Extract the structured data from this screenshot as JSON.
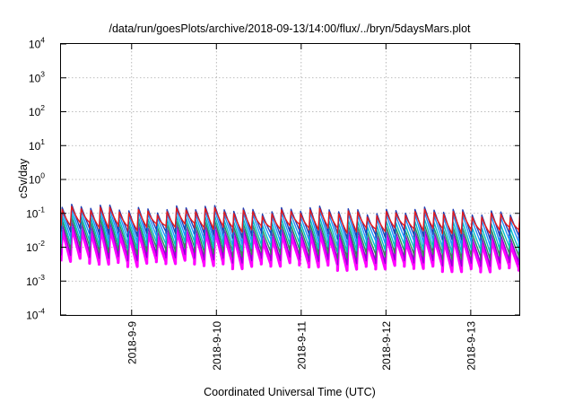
{
  "chart_data": {
    "type": "line",
    "title": "/data/run/goesPlots/archive/2018-09-13/14:00/flux/../bryn/5daysMars.plot",
    "xlabel": "Coordinated Universal Time (UTC)",
    "ylabel": "cSv/day",
    "yscale": "log",
    "ylim": [
      0.0001,
      10000
    ],
    "y_ticks": [
      {
        "value": 0.0001,
        "base": "10",
        "exp": "-4"
      },
      {
        "value": 0.001,
        "base": "10",
        "exp": "-3"
      },
      {
        "value": 0.01,
        "base": "10",
        "exp": "-2"
      },
      {
        "value": 0.1,
        "base": "10",
        "exp": "-1"
      },
      {
        "value": 1,
        "base": "10",
        "exp": "0"
      },
      {
        "value": 10,
        "base": "10",
        "exp": "1"
      },
      {
        "value": 100,
        "base": "10",
        "exp": "2"
      },
      {
        "value": 1000,
        "base": "10",
        "exp": "3"
      },
      {
        "value": 10000,
        "base": "10",
        "exp": "4"
      }
    ],
    "xlim": [
      "2018-09-08T04:00",
      "2018-09-13T14:00"
    ],
    "x_ticks": [
      "2018-9-9",
      "2018-9-10",
      "2018-9-11",
      "2018-9-12",
      "2018-9-13"
    ],
    "x_tick_dates": [
      "2018-09-09T00:00",
      "2018-09-10T00:00",
      "2018-09-11T00:00",
      "2018-09-12T00:00",
      "2018-09-13T00:00"
    ],
    "grid": true,
    "sawtooth_period_hours": 2.7,
    "series": [
      {
        "color": "#ff00ff",
        "peak": [
          0.03,
          0.015
        ],
        "trough": [
          0.004,
          0.0022
        ]
      },
      {
        "color": "#9400d3",
        "peak": [
          0.045,
          0.022
        ],
        "trough": [
          0.006,
          0.0032
        ]
      },
      {
        "color": "#2e8b57",
        "peak": [
          0.06,
          0.03
        ],
        "trough": [
          0.009,
          0.005
        ]
      },
      {
        "color": "#00c0c0",
        "peak": [
          0.08,
          0.045
        ],
        "trough": [
          0.013,
          0.008
        ]
      },
      {
        "color": "#1e90ff",
        "peak": [
          0.11,
          0.075
        ],
        "trough": [
          0.02,
          0.013
        ]
      },
      {
        "color": "#1f3fb5",
        "peak": [
          0.15,
          0.11
        ],
        "trough": [
          0.03,
          0.02
        ]
      },
      {
        "color": "#e41a1c",
        "peak": [
          0.13,
          0.095
        ],
        "trough": [
          0.045,
          0.03
        ]
      }
    ]
  }
}
